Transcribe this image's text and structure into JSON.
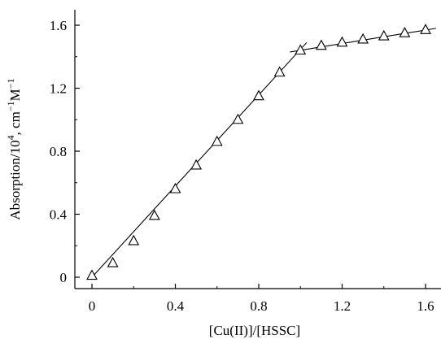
{
  "chart_data": {
    "type": "scatter",
    "xlabel": "[Cu(II)]/[HSSC]",
    "ylabel_parts": {
      "base": "Absorption/10",
      "exp1": "4",
      "mid": ", cm",
      "exp2": "−1",
      "tail": "M",
      "exp3": "−1"
    },
    "xlim": [
      0,
      1.6
    ],
    "ylim": [
      0,
      1.6
    ],
    "x_ticks": [
      0,
      0.4,
      0.8,
      1.2,
      1.6
    ],
    "x_tick_labels": [
      "0",
      "0.4",
      "0.8",
      "1.2",
      "1.6"
    ],
    "y_ticks": [
      0,
      0.4,
      0.8,
      1.2,
      1.6
    ],
    "y_tick_labels": [
      "0",
      "0.4",
      "0.8",
      "1.2",
      "1.6"
    ],
    "grid": false,
    "marker": "open-triangle",
    "series": [
      {
        "x": [
          0,
          0.1,
          0.2,
          0.3,
          0.4,
          0.5,
          0.6,
          0.7,
          0.8,
          0.9,
          1.0,
          1.1,
          1.2,
          1.3,
          1.4,
          1.5,
          1.6
        ],
        "y": [
          0.01,
          0.09,
          0.23,
          0.39,
          0.56,
          0.71,
          0.86,
          1.0,
          1.15,
          1.3,
          1.44,
          1.47,
          1.49,
          1.51,
          1.53,
          1.55,
          1.57
        ]
      }
    ],
    "fit_lines": [
      {
        "x": [
          0,
          1.03
        ],
        "y": [
          0.0,
          1.49
        ]
      },
      {
        "x": [
          0.95,
          1.65
        ],
        "y": [
          1.43,
          1.58
        ]
      }
    ]
  }
}
